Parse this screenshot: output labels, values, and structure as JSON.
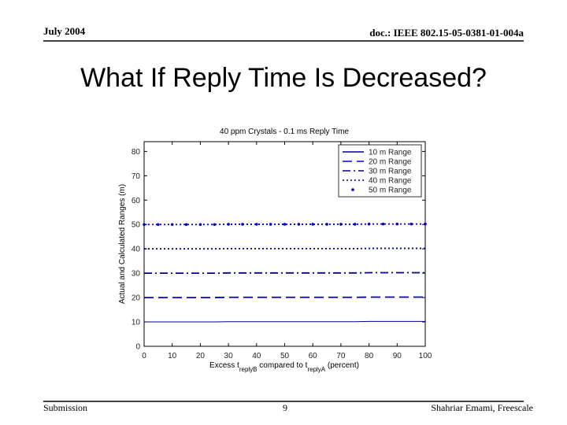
{
  "slide": {
    "header_left": "July 2004",
    "header_right": "doc.: IEEE 802.15-05-0381-01-004a",
    "title": "What If Reply Time Is Decreased?",
    "footer_left": "Submission",
    "footer_center": "9",
    "footer_right": "Shahriar Emami, Freescale"
  },
  "chart_data": {
    "type": "line",
    "title": "40 ppm Crystals - 0.1 ms Reply Time",
    "xlabel": [
      "Excess t",
      "replyB",
      " compared to t",
      "replyA",
      " (percent)"
    ],
    "ylabel": "Actual and Calculated Ranges (m)",
    "x": [
      0,
      5,
      10,
      15,
      20,
      25,
      30,
      35,
      40,
      45,
      50,
      55,
      60,
      65,
      70,
      75,
      80,
      85,
      90,
      95,
      100
    ],
    "xlim": [
      0,
      100
    ],
    "xticks": [
      0,
      10,
      20,
      30,
      40,
      50,
      60,
      70,
      80,
      90,
      100
    ],
    "ylim": [
      0,
      84
    ],
    "yticks": [
      0,
      10,
      20,
      30,
      40,
      50,
      60,
      70,
      80
    ],
    "legend": "upper right",
    "grid": false,
    "series": [
      {
        "name": "10 m Range",
        "color": "#00008b",
        "style": "solid",
        "values": [
          10,
          10,
          10,
          10,
          10,
          10,
          10.1,
          10.1,
          10.1,
          10.1,
          10.1,
          10.1,
          10.1,
          10.1,
          10.1,
          10.1,
          10.2,
          10.2,
          10.2,
          10.2,
          10.2
        ]
      },
      {
        "name": "20 m Range",
        "color": "#0000cd",
        "style": "dashed",
        "values": [
          20,
          20,
          20,
          20,
          20,
          20,
          20.1,
          20.1,
          20.1,
          20.1,
          20.1,
          20.1,
          20.1,
          20.1,
          20.1,
          20.1,
          20.2,
          20.2,
          20.2,
          20.2,
          20.2
        ]
      },
      {
        "name": "30 m Range",
        "color": "#00008b",
        "style": "dashdot",
        "values": [
          30,
          30,
          30,
          30,
          30,
          30,
          30.1,
          30.1,
          30.1,
          30.1,
          30.1,
          30.1,
          30.1,
          30.1,
          30.1,
          30.1,
          30.2,
          30.2,
          30.2,
          30.2,
          30.2
        ]
      },
      {
        "name": "40 m Range",
        "color": "#00008b",
        "style": "dotted",
        "values": [
          40,
          40,
          40,
          40,
          40,
          40,
          40.1,
          40.1,
          40.1,
          40.1,
          40.1,
          40.1,
          40.1,
          40.1,
          40.1,
          40.1,
          40.2,
          40.2,
          40.2,
          40.2,
          40.2
        ]
      },
      {
        "name": "50 m Range",
        "color": "#0000cd",
        "style": "dotted-markers",
        "values": [
          50,
          50,
          50,
          50,
          50,
          50,
          50.1,
          50.1,
          50.1,
          50.1,
          50.1,
          50.1,
          50.1,
          50.1,
          50.1,
          50.1,
          50.2,
          50.2,
          50.2,
          50.2,
          50.2
        ]
      }
    ]
  }
}
